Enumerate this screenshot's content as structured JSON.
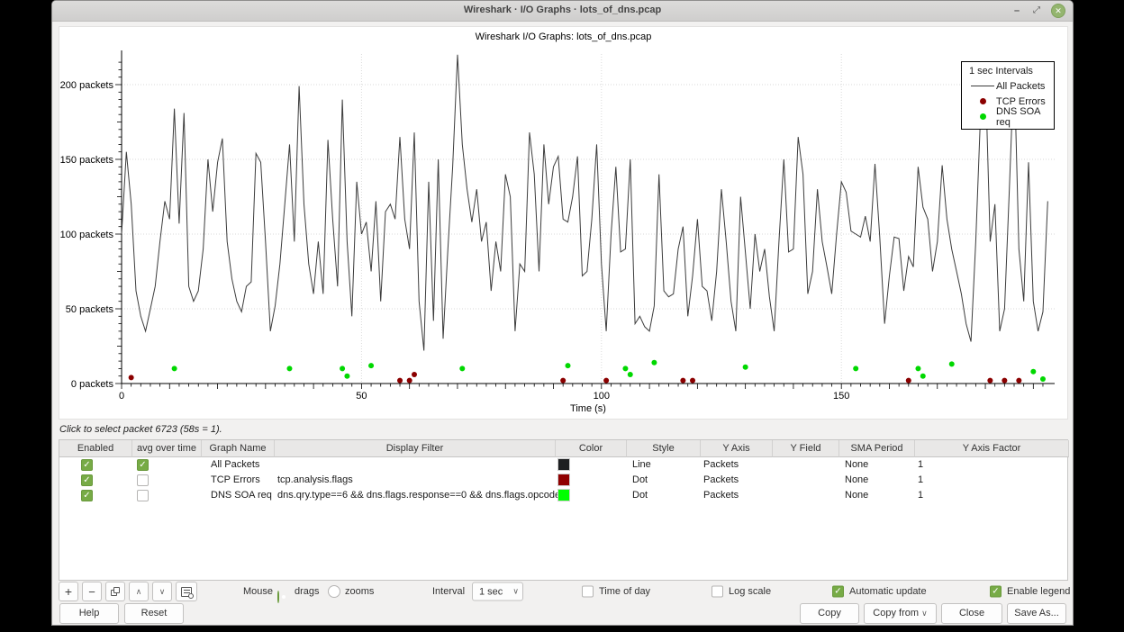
{
  "window": {
    "title": "Wireshark · I/O Graphs · lots_of_dns.pcap",
    "controls": {
      "minimize": "–",
      "restore": "⤢",
      "close": "✕"
    }
  },
  "chart": {
    "title": "Wireshark I/O Graphs: lots_of_dns.pcap",
    "y_tick_labels": [
      "0 packets",
      "50 packets",
      "100 packets",
      "150 packets",
      "200 packets"
    ],
    "legend": {
      "title": "1 sec Intervals",
      "items": [
        {
          "label": "All Packets",
          "marker": "line",
          "color": "#3c3c3c"
        },
        {
          "label": "TCP Errors",
          "marker": "dot",
          "color": "#8b0000"
        },
        {
          "label": "DNS SOA req",
          "marker": "dot",
          "color": "#00d800"
        }
      ]
    }
  },
  "chart_data": {
    "type": "line",
    "title": "Wireshark I/O Graphs: lots_of_dns.pcap",
    "xlabel": "Time (s)",
    "ylabel": "packets",
    "interval": "1 sec",
    "xlim": [
      0,
      193
    ],
    "ylim": [
      0,
      220
    ],
    "x_ticks": [
      0,
      50,
      100,
      150
    ],
    "y_ticks": [
      0,
      50,
      100,
      150,
      200
    ],
    "grid": "dotted",
    "legend_position": "top-right",
    "series": [
      {
        "name": "All Packets",
        "style": "line",
        "color": "#3c3c3c",
        "x_start": 0,
        "x_step": 1,
        "values": [
          100,
          155,
          120,
          62,
          45,
          35,
          50,
          65,
          95,
          122,
          110,
          184,
          107,
          181,
          65,
          55,
          62,
          90,
          150,
          115,
          148,
          164,
          95,
          70,
          55,
          48,
          65,
          68,
          154,
          148,
          95,
          35,
          52,
          80,
          120,
          160,
          95,
          199,
          120,
          80,
          60,
          95,
          60,
          163,
          110,
          65,
          190,
          95,
          45,
          135,
          100,
          108,
          75,
          122,
          55,
          115,
          120,
          110,
          165,
          110,
          90,
          168,
          55,
          22,
          135,
          42,
          150,
          30,
          90,
          145,
          220,
          160,
          130,
          108,
          130,
          95,
          108,
          62,
          95,
          75,
          140,
          125,
          35,
          80,
          75,
          168,
          140,
          75,
          160,
          120,
          145,
          152,
          110,
          108,
          125,
          152,
          72,
          75,
          110,
          160,
          80,
          35,
          100,
          145,
          88,
          90,
          150,
          40,
          45,
          38,
          35,
          52,
          140,
          62,
          58,
          60,
          90,
          105,
          45,
          72,
          110,
          65,
          62,
          42,
          75,
          130,
          95,
          55,
          35,
          125,
          88,
          50,
          100,
          75,
          90,
          58,
          35,
          95,
          150,
          88,
          90,
          165,
          140,
          60,
          75,
          130,
          95,
          78,
          60,
          100,
          135,
          128,
          102,
          100,
          98,
          112,
          95,
          147,
          98,
          40,
          72,
          98,
          97,
          62,
          85,
          78,
          145,
          118,
          110,
          75,
          95,
          146,
          110,
          90,
          75,
          60,
          40,
          28,
          95,
          180,
          210,
          95,
          120,
          35,
          50,
          130,
          215,
          90,
          55,
          148,
          55,
          35,
          48,
          122
        ]
      },
      {
        "name": "TCP Errors",
        "style": "dot",
        "color": "#8b0000",
        "points": [
          [
            2,
            4
          ],
          [
            58,
            2
          ],
          [
            60,
            2
          ],
          [
            61,
            6
          ],
          [
            92,
            2
          ],
          [
            101,
            2
          ],
          [
            117,
            2
          ],
          [
            119,
            2
          ],
          [
            164,
            2
          ],
          [
            181,
            2
          ],
          [
            184,
            2
          ],
          [
            187,
            2
          ]
        ]
      },
      {
        "name": "DNS SOA req",
        "style": "dot",
        "color": "#00d800",
        "points": [
          [
            11,
            10
          ],
          [
            35,
            10
          ],
          [
            46,
            10
          ],
          [
            47,
            5
          ],
          [
            52,
            12
          ],
          [
            71,
            10
          ],
          [
            93,
            12
          ],
          [
            105,
            10
          ],
          [
            106,
            6
          ],
          [
            111,
            14
          ],
          [
            130,
            11
          ],
          [
            153,
            10
          ],
          [
            166,
            10
          ],
          [
            167,
            5
          ],
          [
            173,
            13
          ],
          [
            190,
            8
          ],
          [
            192,
            3
          ]
        ]
      }
    ]
  },
  "status": "Click to select packet 6723 (58s = 1).",
  "table": {
    "columns": [
      "Enabled",
      "avg over time",
      "Graph Name",
      "Display Filter",
      "Color",
      "Style",
      "Y Axis",
      "Y Field",
      "SMA Period",
      "Y Axis Factor"
    ],
    "rows": [
      {
        "enabled": true,
        "avg_over_time": true,
        "graph_name": "All Packets",
        "display_filter": "",
        "color": "#1d1f21",
        "style": "Line",
        "y_axis": "Packets",
        "y_field": "",
        "sma_period": "None",
        "y_axis_factor": "1"
      },
      {
        "enabled": true,
        "avg_over_time": false,
        "graph_name": "TCP Errors",
        "display_filter": "tcp.analysis.flags",
        "color": "#8f0000",
        "style": "Dot",
        "y_axis": "Packets",
        "y_field": "",
        "sma_period": "None",
        "y_axis_factor": "1"
      },
      {
        "enabled": true,
        "avg_over_time": false,
        "graph_name": "DNS SOA req",
        "display_filter": "dns.qry.type==6 && dns.flags.response==0 && dns.flags.opcode==0",
        "color": "#00ff00",
        "style": "Dot",
        "y_axis": "Packets",
        "y_field": "",
        "sma_period": "None",
        "y_axis_factor": "1"
      }
    ]
  },
  "toolbar": {
    "mouse_label": "Mouse",
    "drags_label": "drags",
    "zooms_label": "zooms",
    "interval_label": "Interval",
    "interval_value": "1 sec",
    "time_of_day_label": "Time of day",
    "log_scale_label": "Log scale",
    "automatic_update_label": "Automatic update",
    "enable_legend_label": "Enable legend"
  },
  "footer": {
    "help": "Help",
    "reset": "Reset",
    "copy": "Copy",
    "copy_from": "Copy from",
    "close": "Close",
    "save_as": "Save As..."
  }
}
